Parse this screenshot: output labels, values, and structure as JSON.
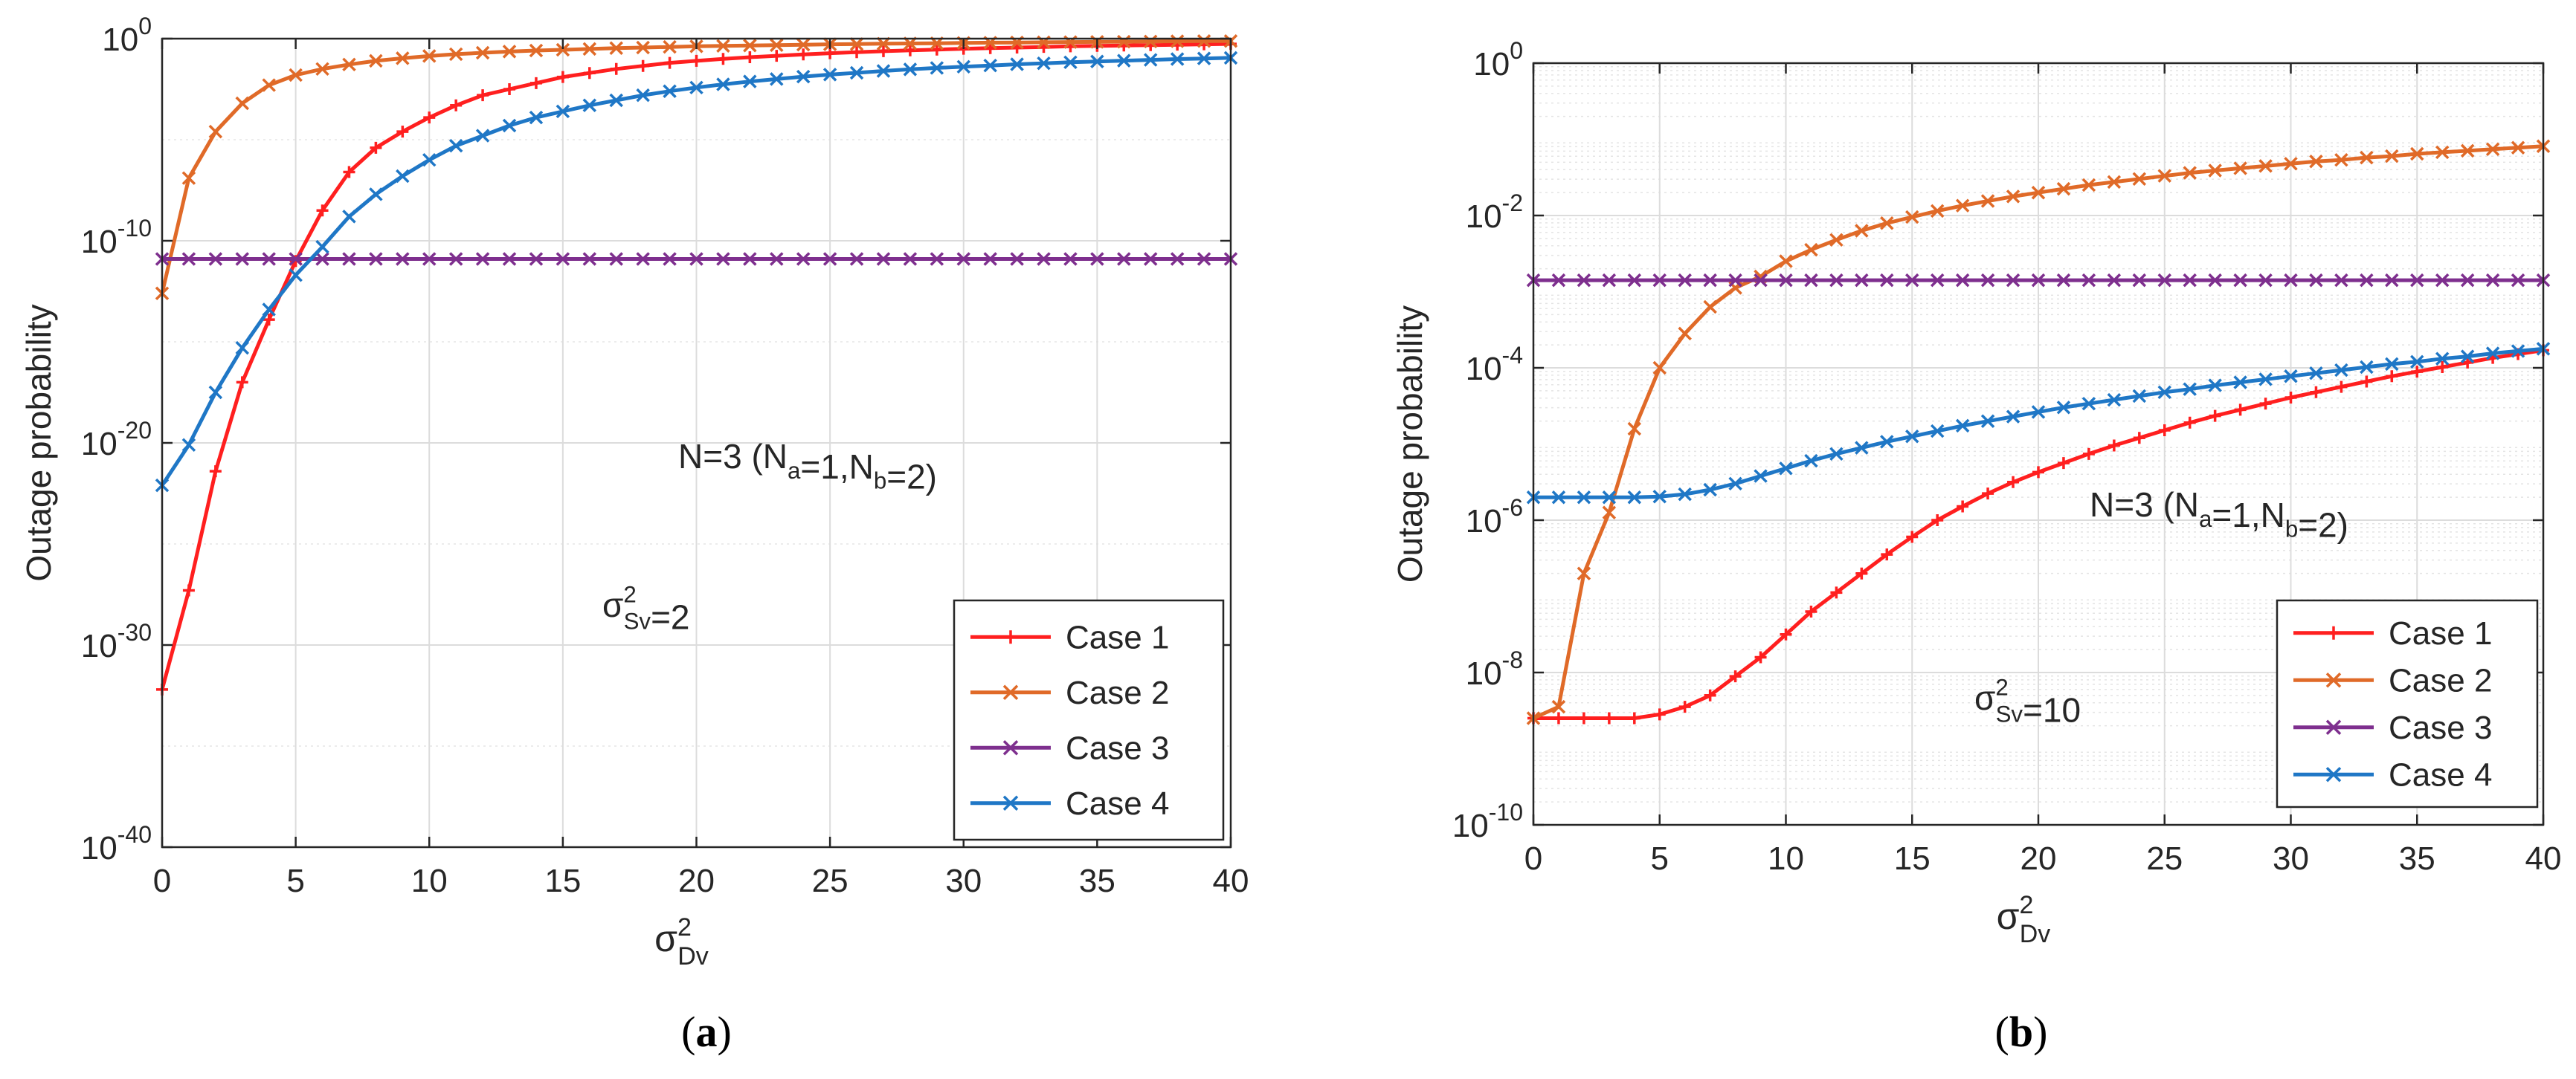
{
  "chart_data": [
    {
      "type": "line",
      "panel": "(a)",
      "yscale": "log",
      "xlabel": "σ²_Dv",
      "ylabel": "Outage probability",
      "xlim": [
        0,
        40
      ],
      "ylim_exp": [
        -40,
        0
      ],
      "xticks": [
        0,
        5,
        10,
        15,
        20,
        25,
        30,
        35,
        40
      ],
      "yticks_exp": [
        -40,
        -30,
        -20,
        -10,
        0
      ],
      "grid": true,
      "legend_position": "bottom-right",
      "annotations": [
        "N=3 (N_a=1,N_b=2)",
        "σ²_Sv=2"
      ],
      "x": [
        0,
        1,
        2,
        3,
        4,
        5,
        6,
        7,
        8,
        9,
        10,
        11,
        12,
        13,
        14,
        15,
        16,
        17,
        18,
        19,
        20,
        21,
        22,
        23,
        24,
        25,
        26,
        27,
        28,
        29,
        30,
        31,
        32,
        33,
        34,
        35,
        36,
        37,
        38,
        39,
        40
      ],
      "series": [
        {
          "name": "Case 1",
          "color": "#ff1f1f",
          "marker": "plus",
          "log10": [
            -32.2,
            -27.3,
            -21.4,
            -17.0,
            -13.9,
            -11.0,
            -8.5,
            -6.6,
            -5.4,
            -4.6,
            -3.9,
            -3.3,
            -2.8,
            -2.5,
            -2.2,
            -1.9,
            -1.7,
            -1.5,
            -1.35,
            -1.2,
            -1.1,
            -1.0,
            -0.92,
            -0.85,
            -0.78,
            -0.72,
            -0.67,
            -0.62,
            -0.58,
            -0.54,
            -0.5,
            -0.47,
            -0.44,
            -0.41,
            -0.38,
            -0.36,
            -0.34,
            -0.32,
            -0.3,
            -0.28,
            -0.26
          ]
        },
        {
          "name": "Case 2",
          "color": "#e06a28",
          "marker": "cross",
          "log10": [
            -12.6,
            -6.9,
            -4.6,
            -3.2,
            -2.3,
            -1.8,
            -1.5,
            -1.28,
            -1.1,
            -0.97,
            -0.86,
            -0.77,
            -0.7,
            -0.64,
            -0.59,
            -0.55,
            -0.51,
            -0.47,
            -0.44,
            -0.41,
            -0.38,
            -0.36,
            -0.34,
            -0.32,
            -0.3,
            -0.28,
            -0.27,
            -0.25,
            -0.24,
            -0.23,
            -0.21,
            -0.2,
            -0.19,
            -0.18,
            -0.17,
            -0.16,
            -0.15,
            -0.14,
            -0.13,
            -0.12,
            -0.12
          ]
        },
        {
          "name": "Case 3",
          "color": "#7e2f8e",
          "marker": "cross",
          "log10": [
            -10.9,
            -10.9,
            -10.9,
            -10.9,
            -10.9,
            -10.9,
            -10.9,
            -10.9,
            -10.9,
            -10.9,
            -10.9,
            -10.9,
            -10.9,
            -10.9,
            -10.9,
            -10.9,
            -10.9,
            -10.9,
            -10.9,
            -10.9,
            -10.9,
            -10.9,
            -10.9,
            -10.9,
            -10.9,
            -10.9,
            -10.9,
            -10.9,
            -10.9,
            -10.9,
            -10.9,
            -10.9,
            -10.9,
            -10.9,
            -10.9,
            -10.9,
            -10.9,
            -10.9,
            -10.9,
            -10.9,
            -10.9
          ]
        },
        {
          "name": "Case 4",
          "color": "#1f77c6",
          "marker": "cross",
          "log10": [
            -22.1,
            -20.1,
            -17.5,
            -15.3,
            -13.4,
            -11.7,
            -10.3,
            -8.8,
            -7.7,
            -6.8,
            -6.0,
            -5.3,
            -4.8,
            -4.3,
            -3.9,
            -3.6,
            -3.3,
            -3.05,
            -2.8,
            -2.6,
            -2.42,
            -2.26,
            -2.12,
            -2.0,
            -1.88,
            -1.78,
            -1.69,
            -1.6,
            -1.52,
            -1.45,
            -1.39,
            -1.33,
            -1.27,
            -1.22,
            -1.17,
            -1.13,
            -1.09,
            -1.05,
            -1.01,
            -0.98,
            -0.95
          ]
        }
      ]
    },
    {
      "type": "line",
      "panel": "(b)",
      "yscale": "log",
      "xlabel": "σ²_Dv",
      "ylabel": "Outage probability",
      "xlim": [
        0,
        40
      ],
      "ylim_exp": [
        -10,
        0
      ],
      "xticks": [
        0,
        5,
        10,
        15,
        20,
        25,
        30,
        35,
        40
      ],
      "yticks_exp": [
        -10,
        -8,
        -6,
        -4,
        -2,
        0
      ],
      "grid": true,
      "minor_grid": true,
      "legend_position": "bottom-right",
      "annotations": [
        "N=3 (N_a=1,N_b=2)",
        "σ²_Sv=10"
      ],
      "x": [
        0,
        1,
        2,
        3,
        4,
        5,
        6,
        7,
        8,
        9,
        10,
        11,
        12,
        13,
        14,
        15,
        16,
        17,
        18,
        19,
        20,
        21,
        22,
        23,
        24,
        25,
        26,
        27,
        28,
        29,
        30,
        31,
        32,
        33,
        34,
        35,
        36,
        37,
        38,
        39,
        40
      ],
      "series": [
        {
          "name": "Case 1",
          "color": "#ff1f1f",
          "marker": "plus",
          "log10": [
            -8.6,
            -8.6,
            -8.6,
            -8.6,
            -8.6,
            -8.55,
            -8.45,
            -8.3,
            -8.05,
            -7.8,
            -7.5,
            -7.2,
            -6.95,
            -6.7,
            -6.45,
            -6.22,
            -6.0,
            -5.82,
            -5.65,
            -5.5,
            -5.37,
            -5.25,
            -5.13,
            -5.02,
            -4.92,
            -4.82,
            -4.72,
            -4.63,
            -4.55,
            -4.47,
            -4.39,
            -4.32,
            -4.25,
            -4.18,
            -4.11,
            -4.05,
            -3.99,
            -3.93,
            -3.87,
            -3.82,
            -3.77
          ]
        },
        {
          "name": "Case 2",
          "color": "#e06a28",
          "marker": "cross",
          "log10": [
            -8.6,
            -8.45,
            -6.7,
            -5.9,
            -4.8,
            -4.0,
            -3.55,
            -3.2,
            -2.95,
            -2.8,
            -2.6,
            -2.45,
            -2.32,
            -2.2,
            -2.1,
            -2.02,
            -1.94,
            -1.87,
            -1.81,
            -1.75,
            -1.7,
            -1.65,
            -1.6,
            -1.56,
            -1.52,
            -1.48,
            -1.44,
            -1.41,
            -1.38,
            -1.35,
            -1.32,
            -1.29,
            -1.27,
            -1.24,
            -1.22,
            -1.19,
            -1.17,
            -1.15,
            -1.13,
            -1.11,
            -1.09
          ]
        },
        {
          "name": "Case 3",
          "color": "#7e2f8e",
          "marker": "cross",
          "log10": [
            -2.85,
            -2.85,
            -2.85,
            -2.85,
            -2.85,
            -2.85,
            -2.85,
            -2.85,
            -2.85,
            -2.85,
            -2.85,
            -2.85,
            -2.85,
            -2.85,
            -2.85,
            -2.85,
            -2.85,
            -2.85,
            -2.85,
            -2.85,
            -2.85,
            -2.85,
            -2.85,
            -2.85,
            -2.85,
            -2.85,
            -2.85,
            -2.85,
            -2.85,
            -2.85,
            -2.85,
            -2.85,
            -2.85,
            -2.85,
            -2.85,
            -2.85,
            -2.85,
            -2.85,
            -2.85,
            -2.85,
            -2.85
          ]
        },
        {
          "name": "Case 4",
          "color": "#1f77c6",
          "marker": "cross",
          "log10": [
            -5.7,
            -5.7,
            -5.7,
            -5.7,
            -5.7,
            -5.69,
            -5.66,
            -5.6,
            -5.52,
            -5.42,
            -5.32,
            -5.22,
            -5.13,
            -5.05,
            -4.97,
            -4.9,
            -4.83,
            -4.76,
            -4.7,
            -4.64,
            -4.58,
            -4.52,
            -4.47,
            -4.42,
            -4.37,
            -4.32,
            -4.28,
            -4.23,
            -4.19,
            -4.15,
            -4.11,
            -4.07,
            -4.03,
            -3.99,
            -3.95,
            -3.92,
            -3.88,
            -3.85,
            -3.81,
            -3.78,
            -3.75
          ]
        }
      ]
    }
  ],
  "captions": [
    "(a)",
    "(b)"
  ]
}
